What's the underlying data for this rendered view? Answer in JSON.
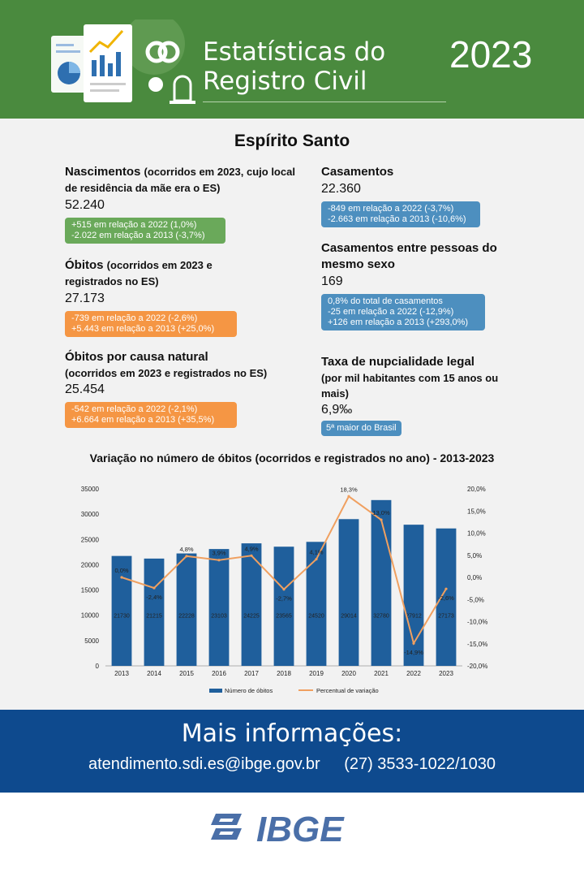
{
  "header": {
    "title_line1": "Estatísticas do",
    "title_line2": "Registro Civil",
    "year": "2023",
    "bg_color": "#4a8a3e"
  },
  "region": "Espírito Santo",
  "nascimentos": {
    "title": "Nascimentos",
    "qualifier": "(ocorridos em 2023, cujo local de residência da mãe era o ES)",
    "value": "52.240",
    "lines": [
      "+515 em relação a 2022 (1,0%)",
      "-2.022 em relação a 2013 (-3,7%)"
    ]
  },
  "obitos": {
    "title": "Óbitos",
    "qualifier": "(ocorridos em 2023 e registrados no ES)",
    "value": "27.173",
    "lines": [
      "-739 em relação a 2022 (-2,6%)",
      "+5.443 em relação a 2013 (+25,0%)"
    ]
  },
  "obitos_natural": {
    "title": "Óbitos por causa natural",
    "qualifier": "(ocorridos em 2023 e registrados no ES)",
    "value": "25.454",
    "lines": [
      "-542 em relação a 2022 (-2,1%)",
      "+6.664 em relação a 2013 (+35,5%)"
    ]
  },
  "casamentos": {
    "title": "Casamentos",
    "value": "22.360",
    "lines": [
      "-849 em relação a 2022 (-3,7%)",
      "-2.663 em relação a 2013 (-10,6%)"
    ]
  },
  "casamentos_mesmo_sexo": {
    "title": "Casamentos entre pessoas do mesmo sexo",
    "value": "169",
    "lines": [
      "0,8% do total de casamentos",
      "-25 em relação a 2022 (-12,9%)",
      "+126 em relação a 2013 (+293,0%)"
    ]
  },
  "nupcialidade": {
    "title": "Taxa de nupcialidade legal",
    "qualifier": "(por mil habitantes com 15 anos ou mais)",
    "value": "6,9‰",
    "badge": "5ª maior do Brasil"
  },
  "chart_title": "Variação no número de óbitos (ocorridos e registrados no ano) - 2013-2023",
  "chart_data": {
    "type": "bar",
    "categories": [
      "2013",
      "2014",
      "2015",
      "2016",
      "2017",
      "2018",
      "2019",
      "2020",
      "2021",
      "2022",
      "2023"
    ],
    "series": [
      {
        "name": "Número de óbitos",
        "type": "bar",
        "axis": "left",
        "color": "#1f5f9c",
        "values": [
          21730,
          21215,
          22228,
          23103,
          24225,
          23565,
          24520,
          29014,
          32780,
          27912,
          27173
        ],
        "labels": [
          "21730",
          "21215",
          "22228",
          "23103",
          "24225",
          "23565",
          "24520",
          "29014",
          "32780",
          "27912",
          "27173"
        ]
      },
      {
        "name": "Percentual de variação",
        "type": "line",
        "axis": "right",
        "color": "#f0a060",
        "values": [
          0.0,
          -2.4,
          4.8,
          3.9,
          4.9,
          -2.7,
          4.1,
          18.3,
          13.0,
          -14.9,
          -2.6
        ],
        "labels": [
          "0,0%",
          "-2,4%",
          "4,8%",
          "3,9%",
          "4,9%",
          "-2,7%",
          "4,1%",
          "18,3%",
          "13,0%",
          "-14,9%",
          "-2,6%"
        ]
      }
    ],
    "y_left": {
      "min": 0,
      "max": 35000,
      "ticks": [
        "0",
        "5000",
        "10000",
        "15000",
        "20000",
        "25000",
        "30000",
        "35000"
      ]
    },
    "y_right": {
      "min": -20,
      "max": 20,
      "ticks": [
        "-20,0%",
        "-15,0%",
        "-10,0%",
        "-5,0%",
        "0,0%",
        "5,0%",
        "10,0%",
        "15,0%",
        "20,0%"
      ]
    },
    "grid": false,
    "legend_position": "bottom"
  },
  "footer": {
    "heading": "Mais informações:",
    "email": "atendimento.sdi.es@ibge.gov.br",
    "phone": "(27) 3533-1022/1030",
    "bg_color": "#0e4a8e"
  },
  "brand": {
    "name": "IBGE",
    "color": "#4a6fa8"
  }
}
